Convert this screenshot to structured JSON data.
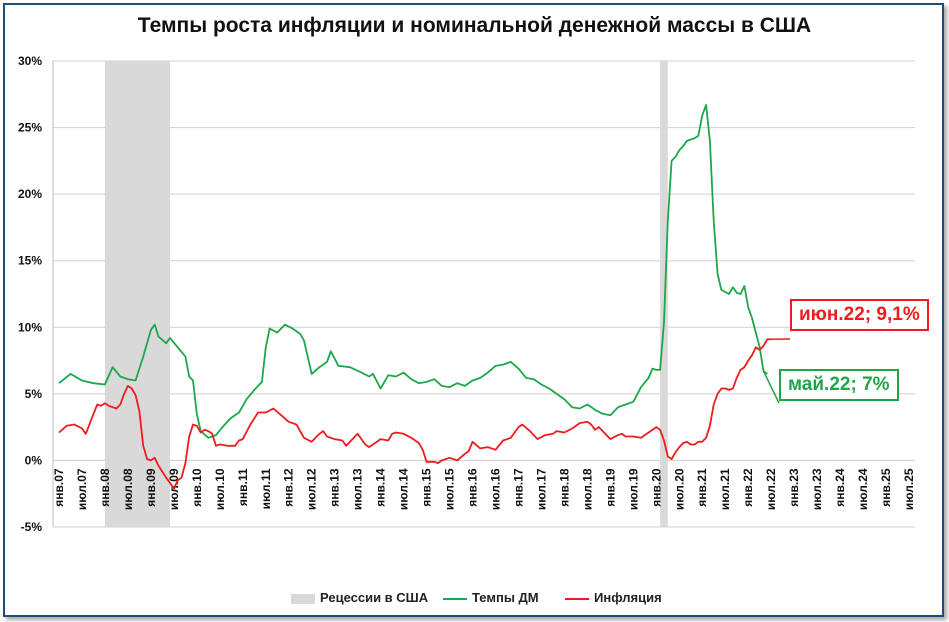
{
  "chart_data": {
    "type": "line",
    "title": "Темпы роста инфляции и номинальной денежной массы в США",
    "ylabel": "",
    "xlabel": "",
    "ylim": [
      -5,
      30
    ],
    "yticks": [
      "-5%",
      "0%",
      "5%",
      "10%",
      "15%",
      "20%",
      "25%",
      "30%"
    ],
    "ytick_values": [
      -5,
      0,
      5,
      10,
      15,
      20,
      25,
      30
    ],
    "xticks": [
      "янв.07",
      "июл.07",
      "янв.08",
      "июл.08",
      "янв.09",
      "июл.09",
      "янв.10",
      "июл.10",
      "янв.11",
      "июл.11",
      "янв.12",
      "июл.12",
      "янв.13",
      "июл.13",
      "янв.14",
      "июл.14",
      "янв.15",
      "июл.15",
      "янв.16",
      "июл.16",
      "янв.17",
      "июл.17",
      "янв.18",
      "июл.18",
      "янв.19",
      "июл.19",
      "янв.20",
      "июл.20",
      "янв.21",
      "июл.21",
      "янв.22",
      "июл.22",
      "янв.23",
      "июл.23",
      "янв.24",
      "июл.24",
      "янв.25",
      "июл.25"
    ],
    "xrange": [
      "янв.07",
      "июл.25"
    ],
    "grid": "horizontal",
    "legend_position": "bottom",
    "recessions": [
      {
        "start": "янв.08",
        "end": "июн.09"
      },
      {
        "start": "фев.20",
        "end": "апр.20"
      }
    ],
    "series": [
      {
        "name": "Темпы ДМ",
        "color": "#1fa64b",
        "points": [
          [
            "янв.07",
            5.8
          ],
          [
            "апр.07",
            6.5
          ],
          [
            "июл.07",
            6.0
          ],
          [
            "окт.07",
            5.8
          ],
          [
            "янв.08",
            5.7
          ],
          [
            "мар.08",
            7.0
          ],
          [
            "май.08",
            6.3
          ],
          [
            "июл.08",
            6.1
          ],
          [
            "сен.08",
            6.0
          ],
          [
            "ноя.08",
            7.8
          ],
          [
            "янв.09",
            9.8
          ],
          [
            "фев.09",
            10.2
          ],
          [
            "мар.09",
            9.3
          ],
          [
            "май.09",
            8.8
          ],
          [
            "июн.09",
            9.2
          ],
          [
            "авг.09",
            8.5
          ],
          [
            "окт.09",
            7.8
          ],
          [
            "ноя.09",
            6.3
          ],
          [
            "дек.09",
            6.0
          ],
          [
            "янв.10",
            3.5
          ],
          [
            "фев.10",
            2.2
          ],
          [
            "апр.10",
            1.7
          ],
          [
            "июн.10",
            1.9
          ],
          [
            "авг.10",
            2.6
          ],
          [
            "окт.10",
            3.2
          ],
          [
            "дек.10",
            3.6
          ],
          [
            "фев.11",
            4.6
          ],
          [
            "апр.11",
            5.3
          ],
          [
            "июн.11",
            5.9
          ],
          [
            "июл.11",
            8.5
          ],
          [
            "авг.11",
            9.9
          ],
          [
            "окт.11",
            9.6
          ],
          [
            "дек.11",
            10.2
          ],
          [
            "фев.12",
            9.9
          ],
          [
            "апр.12",
            9.5
          ],
          [
            "май.12",
            9.0
          ],
          [
            "июл.12",
            6.5
          ],
          [
            "сен.12",
            7.0
          ],
          [
            "ноя.12",
            7.4
          ],
          [
            "дек.12",
            8.2
          ],
          [
            "фев.13",
            7.1
          ],
          [
            "май.13",
            7.0
          ],
          [
            "авг.13",
            6.6
          ],
          [
            "окт.13",
            6.3
          ],
          [
            "ноя.13",
            6.5
          ],
          [
            "янв.14",
            5.4
          ],
          [
            "мар.14",
            6.4
          ],
          [
            "май.14",
            6.3
          ],
          [
            "июл.14",
            6.6
          ],
          [
            "сен.14",
            6.1
          ],
          [
            "ноя.14",
            5.8
          ],
          [
            "янв.15",
            5.9
          ],
          [
            "мар.15",
            6.1
          ],
          [
            "май.15",
            5.6
          ],
          [
            "июл.15",
            5.5
          ],
          [
            "сен.15",
            5.8
          ],
          [
            "ноя.15",
            5.6
          ],
          [
            "янв.16",
            6.0
          ],
          [
            "мар.16",
            6.2
          ],
          [
            "май.16",
            6.6
          ],
          [
            "июл.16",
            7.1
          ],
          [
            "сен.16",
            7.2
          ],
          [
            "ноя.16",
            7.4
          ],
          [
            "янв.17",
            6.9
          ],
          [
            "мар.17",
            6.2
          ],
          [
            "май.17",
            6.1
          ],
          [
            "июл.17",
            5.7
          ],
          [
            "сен.17",
            5.4
          ],
          [
            "ноя.17",
            5.0
          ],
          [
            "янв.18",
            4.6
          ],
          [
            "мар.18",
            4.0
          ],
          [
            "май.18",
            3.9
          ],
          [
            "июл.18",
            4.2
          ],
          [
            "сен.18",
            3.8
          ],
          [
            "ноя.18",
            3.5
          ],
          [
            "янв.19",
            3.4
          ],
          [
            "мар.19",
            4.0
          ],
          [
            "май.19",
            4.2
          ],
          [
            "июл.19",
            4.4
          ],
          [
            "сен.19",
            5.5
          ],
          [
            "ноя.19",
            6.2
          ],
          [
            "дек.19",
            6.9
          ],
          [
            "янв.20",
            6.8
          ],
          [
            "фев.20",
            6.8
          ],
          [
            "мар.20",
            10.4
          ],
          [
            "апр.20",
            18.0
          ],
          [
            "май.20",
            22.5
          ],
          [
            "июн.20",
            22.8
          ],
          [
            "июл.20",
            23.3
          ],
          [
            "авг.20",
            23.6
          ],
          [
            "сен.20",
            24.0
          ],
          [
            "ноя.20",
            24.2
          ],
          [
            "дек.20",
            24.4
          ],
          [
            "янв.21",
            25.9
          ],
          [
            "фев.21",
            26.7
          ],
          [
            "мар.21",
            24.0
          ],
          [
            "апр.21",
            18.0
          ],
          [
            "май.21",
            14.0
          ],
          [
            "июн.21",
            12.8
          ],
          [
            "авг.21",
            12.5
          ],
          [
            "сен.21",
            13.0
          ],
          [
            "окт.21",
            12.6
          ],
          [
            "ноя.21",
            12.5
          ],
          [
            "дек.21",
            13.1
          ],
          [
            "янв.22",
            11.5
          ],
          [
            "фев.22",
            10.7
          ],
          [
            "мар.22",
            9.6
          ],
          [
            "апр.22",
            8.5
          ],
          [
            "май.22",
            6.7
          ],
          [
            "июн.22",
            6.5
          ]
        ]
      },
      {
        "name": "Инфляция",
        "color": "#ee1c1c",
        "points": [
          [
            "янв.07",
            2.1
          ],
          [
            "мар.07",
            2.6
          ],
          [
            "май.07",
            2.7
          ],
          [
            "июл.07",
            2.4
          ],
          [
            "авг.07",
            2.0
          ],
          [
            "окт.07",
            3.5
          ],
          [
            "ноя.07",
            4.2
          ],
          [
            "дек.07",
            4.1
          ],
          [
            "янв.08",
            4.3
          ],
          [
            "фев.08",
            4.1
          ],
          [
            "апр.08",
            3.9
          ],
          [
            "май.08",
            4.2
          ],
          [
            "июн.08",
            5.0
          ],
          [
            "июл.08",
            5.6
          ],
          [
            "авг.08",
            5.4
          ],
          [
            "сен.08",
            4.9
          ],
          [
            "окт.08",
            3.7
          ],
          [
            "ноя.08",
            1.1
          ],
          [
            "дек.08",
            0.1
          ],
          [
            "янв.09",
            0.0
          ],
          [
            "фев.09",
            0.2
          ],
          [
            "мар.09",
            -0.4
          ],
          [
            "май.09",
            -1.3
          ],
          [
            "июл.09",
            -2.1
          ],
          [
            "авг.09",
            -1.5
          ],
          [
            "сен.09",
            -1.3
          ],
          [
            "окт.09",
            -0.2
          ],
          [
            "ноя.09",
            1.8
          ],
          [
            "дек.09",
            2.7
          ],
          [
            "янв.10",
            2.6
          ],
          [
            "фев.10",
            2.1
          ],
          [
            "мар.10",
            2.3
          ],
          [
            "апр.10",
            2.2
          ],
          [
            "май.10",
            2.0
          ],
          [
            "июн.10",
            1.1
          ],
          [
            "июл.10",
            1.2
          ],
          [
            "сен.10",
            1.1
          ],
          [
            "ноя.10",
            1.1
          ],
          [
            "дек.10",
            1.5
          ],
          [
            "янв.11",
            1.6
          ],
          [
            "мар.11",
            2.7
          ],
          [
            "май.11",
            3.6
          ],
          [
            "июл.11",
            3.6
          ],
          [
            "сен.11",
            3.9
          ],
          [
            "ноя.11",
            3.4
          ],
          [
            "янв.12",
            2.9
          ],
          [
            "мар.12",
            2.7
          ],
          [
            "май.12",
            1.7
          ],
          [
            "июл.12",
            1.4
          ],
          [
            "сен.12",
            2.0
          ],
          [
            "окт.12",
            2.2
          ],
          [
            "ноя.12",
            1.8
          ],
          [
            "дек.12",
            1.7
          ],
          [
            "янв.13",
            1.6
          ],
          [
            "мар.13",
            1.5
          ],
          [
            "апр.13",
            1.1
          ],
          [
            "май.13",
            1.4
          ],
          [
            "июл.13",
            2.0
          ],
          [
            "сен.13",
            1.2
          ],
          [
            "окт.13",
            1.0
          ],
          [
            "ноя.13",
            1.2
          ],
          [
            "янв.14",
            1.6
          ],
          [
            "мар.14",
            1.5
          ],
          [
            "апр.14",
            2.0
          ],
          [
            "май.14",
            2.1
          ],
          [
            "июл.14",
            2.0
          ],
          [
            "сен.14",
            1.7
          ],
          [
            "ноя.14",
            1.3
          ],
          [
            "дек.14",
            0.8
          ],
          [
            "янв.15",
            -0.1
          ],
          [
            "мар.15",
            -0.1
          ],
          [
            "апр.15",
            -0.2
          ],
          [
            "май.15",
            0.0
          ],
          [
            "июл.15",
            0.2
          ],
          [
            "сен.15",
            0.0
          ],
          [
            "ноя.15",
            0.5
          ],
          [
            "дек.15",
            0.7
          ],
          [
            "янв.16",
            1.4
          ],
          [
            "мар.16",
            0.9
          ],
          [
            "май.16",
            1.0
          ],
          [
            "июл.16",
            0.8
          ],
          [
            "сен.16",
            1.5
          ],
          [
            "ноя.16",
            1.7
          ],
          [
            "янв.17",
            2.5
          ],
          [
            "фев.17",
            2.7
          ],
          [
            "апр.17",
            2.2
          ],
          [
            "июн.17",
            1.6
          ],
          [
            "авг.17",
            1.9
          ],
          [
            "окт.17",
            2.0
          ],
          [
            "ноя.17",
            2.2
          ],
          [
            "янв.18",
            2.1
          ],
          [
            "мар.18",
            2.4
          ],
          [
            "май.18",
            2.8
          ],
          [
            "июл.18",
            2.9
          ],
          [
            "авг.18",
            2.7
          ],
          [
            "сен.18",
            2.3
          ],
          [
            "окт.18",
            2.5
          ],
          [
            "ноя.18",
            2.2
          ],
          [
            "дек.18",
            1.9
          ],
          [
            "янв.19",
            1.6
          ],
          [
            "мар.19",
            1.9
          ],
          [
            "апр.19",
            2.0
          ],
          [
            "май.19",
            1.8
          ],
          [
            "июл.19",
            1.8
          ],
          [
            "сен.19",
            1.7
          ],
          [
            "ноя.19",
            2.1
          ],
          [
            "дек.19",
            2.3
          ],
          [
            "янв.20",
            2.5
          ],
          [
            "фев.20",
            2.3
          ],
          [
            "мар.20",
            1.5
          ],
          [
            "апр.20",
            0.3
          ],
          [
            "май.20",
            0.1
          ],
          [
            "июн.20",
            0.6
          ],
          [
            "июл.20",
            1.0
          ],
          [
            "авг.20",
            1.3
          ],
          [
            "сен.20",
            1.4
          ],
          [
            "окт.20",
            1.2
          ],
          [
            "ноя.20",
            1.2
          ],
          [
            "дек.20",
            1.4
          ],
          [
            "янв.21",
            1.4
          ],
          [
            "фев.21",
            1.7
          ],
          [
            "мар.21",
            2.6
          ],
          [
            "апр.21",
            4.2
          ],
          [
            "май.21",
            5.0
          ],
          [
            "июн.21",
            5.4
          ],
          [
            "июл.21",
            5.4
          ],
          [
            "авг.21",
            5.3
          ],
          [
            "сен.21",
            5.4
          ],
          [
            "окт.21",
            6.2
          ],
          [
            "ноя.21",
            6.8
          ],
          [
            "дек.21",
            7.0
          ],
          [
            "янв.22",
            7.5
          ],
          [
            "фев.22",
            7.9
          ],
          [
            "мар.22",
            8.5
          ],
          [
            "апр.22",
            8.3
          ],
          [
            "май.22",
            8.6
          ],
          [
            "июн.22",
            9.1
          ],
          [
            "июл.22",
            9.1
          ]
        ]
      }
    ],
    "annotations": [
      {
        "label": "июн.22; 9,1%",
        "series": "Инфляция",
        "point": "июн.22",
        "color": "#ee1c1c"
      },
      {
        "label": "май.22; 7%",
        "series": "Темпы ДМ",
        "point": "май.22",
        "color": "#1fa64b"
      }
    ],
    "legend": [
      {
        "label": "Рецессии в США",
        "kind": "box",
        "color": "#d9d9d9"
      },
      {
        "label": "Темпы ДМ",
        "kind": "line",
        "color": "#1fa64b"
      },
      {
        "label": "Инфляция",
        "kind": "line",
        "color": "#ee1c1c"
      }
    ]
  }
}
